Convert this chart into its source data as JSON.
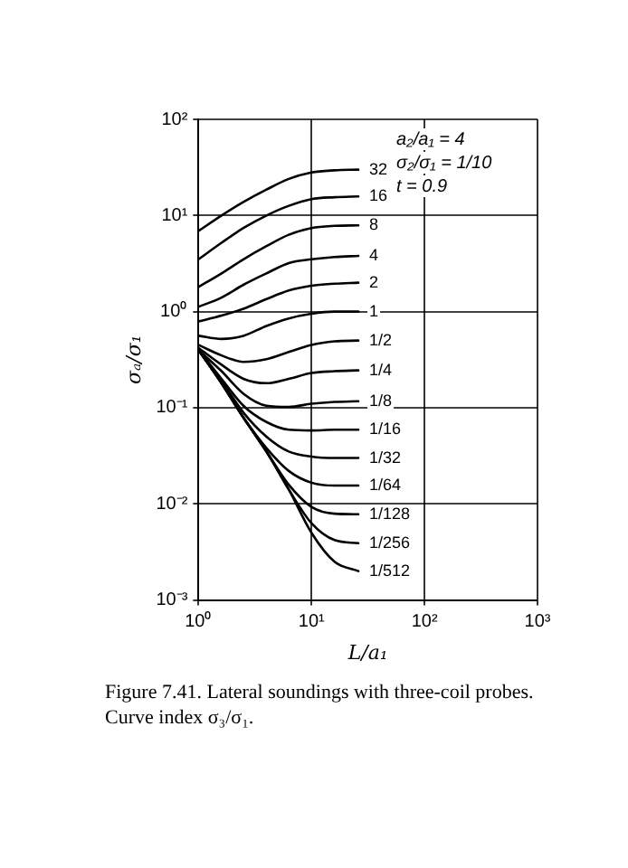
{
  "chart_data": {
    "type": "line",
    "xlabel": "L/a₁",
    "ylabel": "σₐ/σ₁",
    "annotations": [
      "a₂/a₁ = 4",
      "σ₂/σ₁ = 1/10",
      "t = 0.9",
      "Figure 7.41. Lateral soundings with three-coil probes. Curve index σ₃/σ₁."
    ],
    "x": [
      1,
      1.6,
      2.5,
      4,
      6.3,
      10,
      16,
      26
    ],
    "series": [
      {
        "name": "32",
        "color": "#000000",
        "values": [
          6.9,
          10,
          13.8,
          18.6,
          24,
          28,
          29.5,
          30
        ]
      },
      {
        "name": "16",
        "color": "#000000",
        "values": [
          3.5,
          5.2,
          7.4,
          10,
          12.6,
          14.8,
          15.5,
          15.8
        ]
      },
      {
        "name": "8",
        "color": "#000000",
        "values": [
          1.8,
          2.5,
          3.5,
          4.8,
          6.3,
          7.4,
          7.8,
          7.9
        ]
      },
      {
        "name": "4",
        "color": "#000000",
        "values": [
          1.12,
          1.4,
          1.9,
          2.5,
          3.2,
          3.5,
          3.7,
          3.8
        ]
      },
      {
        "name": "2",
        "color": "#000000",
        "values": [
          0.79,
          0.91,
          1.07,
          1.35,
          1.66,
          1.86,
          1.95,
          2
        ]
      },
      {
        "name": "1",
        "color": "#000000",
        "values": [
          0.56,
          0.52,
          0.56,
          0.71,
          0.85,
          0.95,
          1,
          1
        ]
      },
      {
        "name": "1/2",
        "color": "#000000",
        "values": [
          0.45,
          0.35,
          0.3,
          0.32,
          0.38,
          0.45,
          0.49,
          0.5
        ]
      },
      {
        "name": "1/4",
        "color": "#000000",
        "values": [
          0.42,
          0.28,
          0.2,
          0.18,
          0.2,
          0.23,
          0.24,
          0.245
        ]
      },
      {
        "name": "1/8",
        "color": "#000000",
        "values": [
          0.4,
          0.24,
          0.14,
          0.105,
          0.102,
          0.11,
          0.115,
          0.117
        ]
      },
      {
        "name": "1/16",
        "color": "#000000",
        "values": [
          0.4,
          0.2,
          0.105,
          0.071,
          0.059,
          0.058,
          0.059,
          0.059
        ]
      },
      {
        "name": "1/32",
        "color": "#000000",
        "values": [
          0.4,
          0.19,
          0.089,
          0.05,
          0.035,
          0.031,
          0.03,
          0.03
        ]
      },
      {
        "name": "1/64",
        "color": "#000000",
        "values": [
          0.4,
          0.18,
          0.079,
          0.038,
          0.022,
          0.0166,
          0.0155,
          0.0155
        ]
      },
      {
        "name": "1/128",
        "color": "#000000",
        "values": [
          0.4,
          0.18,
          0.079,
          0.035,
          0.0158,
          0.0093,
          0.0079,
          0.0078
        ]
      },
      {
        "name": "1/256",
        "color": "#000000",
        "values": [
          0.4,
          0.18,
          0.079,
          0.035,
          0.0141,
          0.0063,
          0.0042,
          0.0039
        ]
      },
      {
        "name": "1/512",
        "color": "#000000",
        "values": [
          0.4,
          0.18,
          0.079,
          0.035,
          0.0141,
          0.005,
          0.0025,
          0.002
        ]
      }
    ],
    "log": "xy",
    "xlim": [
      1,
      1000
    ],
    "ylim": [
      0.001,
      100
    ],
    "xticks": [
      {
        "value": 1,
        "label": "10⁰"
      },
      {
        "value": 10,
        "label": "10¹"
      },
      {
        "value": 100,
        "label": "10²"
      },
      {
        "value": 1000,
        "label": "10³"
      }
    ],
    "yticks": [
      {
        "value": 0.001,
        "label": "10⁻³"
      },
      {
        "value": 0.01,
        "label": "10⁻²"
      },
      {
        "value": 0.1,
        "label": "10⁻¹"
      },
      {
        "value": 1,
        "label": "10⁰"
      },
      {
        "value": 10,
        "label": "10¹"
      },
      {
        "value": 100,
        "label": "10²"
      }
    ],
    "grid": true,
    "legend": false,
    "marker": "none",
    "line_style": "solid"
  }
}
